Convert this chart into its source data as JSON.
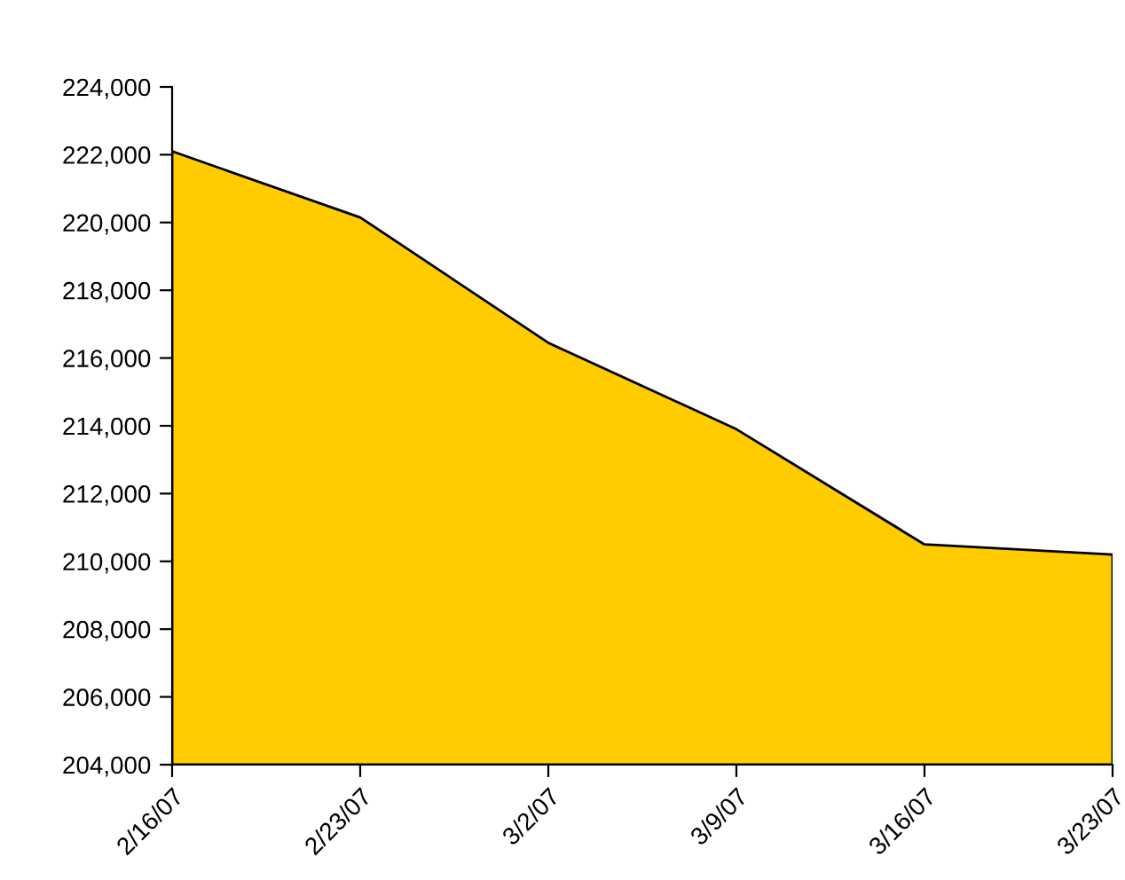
{
  "chart_data": {
    "type": "area",
    "categories": [
      "2/16/07",
      "2/23/07",
      "3/2/07",
      "3/9/07",
      "3/16/07",
      "3/23/07"
    ],
    "series": [
      {
        "color": "#ffcc00",
        "values": [
          222100,
          220150,
          216450,
          213900,
          210500,
          210200
        ]
      }
    ],
    "ylim": [
      204000,
      224000
    ],
    "yticks": [
      {
        "value": 204000,
        "label": "204,000"
      },
      {
        "value": 206000,
        "label": "206,000"
      },
      {
        "value": 208000,
        "label": "208,000"
      },
      {
        "value": 210000,
        "label": "210,000"
      },
      {
        "value": 212000,
        "label": "212,000"
      },
      {
        "value": 214000,
        "label": "214,000"
      },
      {
        "value": 216000,
        "label": "216,000"
      },
      {
        "value": 218000,
        "label": "218,000"
      },
      {
        "value": 220000,
        "label": "220,000"
      },
      {
        "value": 222000,
        "label": "222,000"
      },
      {
        "value": 224000,
        "label": "224,000"
      }
    ],
    "grid": false,
    "legend": false
  }
}
